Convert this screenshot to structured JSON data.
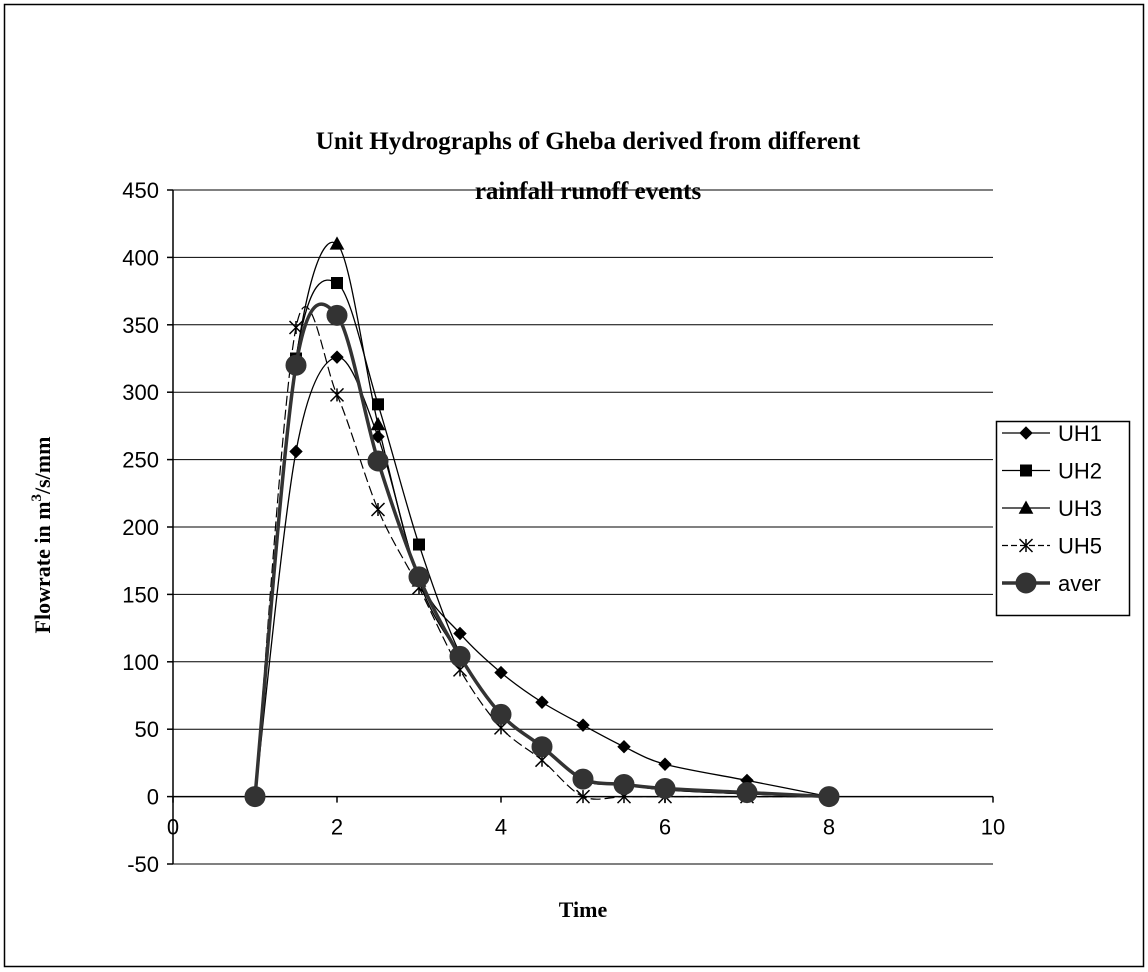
{
  "chart_data": {
    "type": "line",
    "title_lines": [
      "Unit Hydrographs of Gheba derived from different",
      "rainfall runoff events"
    ],
    "xlabel": "Time",
    "ylabel_main": "Flowrate in m",
    "ylabel_sup": "3",
    "ylabel_tail": "/s/mm",
    "xlim": [
      0,
      10
    ],
    "ylim": [
      -50,
      450
    ],
    "x_ticks": [
      0,
      2,
      4,
      6,
      8,
      10
    ],
    "y_ticks": [
      -50,
      0,
      50,
      100,
      150,
      200,
      250,
      300,
      350,
      400,
      450
    ],
    "grid": "horizontal",
    "legend_position": "right",
    "series": [
      {
        "name": "UH1",
        "marker": "diamond",
        "color": "#000000",
        "x": [
          1,
          1.5,
          2,
          2.5,
          3,
          3.5,
          4,
          4.5,
          5,
          5.5,
          6,
          7,
          8
        ],
        "y": [
          0,
          256,
          326,
          267,
          162,
          121,
          92,
          70,
          53,
          37,
          24,
          12,
          0
        ]
      },
      {
        "name": "UH2",
        "marker": "square",
        "color": "#000000",
        "x": [
          1,
          1.5,
          2,
          2.5,
          3,
          3.5,
          4,
          4.5,
          5,
          5.5,
          6,
          7,
          8
        ],
        "y": [
          0,
          325,
          381,
          291,
          187,
          106,
          60,
          37,
          12,
          9,
          5,
          2,
          0
        ]
      },
      {
        "name": "UH3",
        "marker": "triangle",
        "color": "#000000",
        "x": [
          1,
          1.5,
          2,
          2.5,
          3,
          3.5,
          4,
          4.5,
          5,
          5.5,
          6,
          7,
          8
        ],
        "y": [
          0,
          324,
          410,
          276,
          160,
          104,
          60,
          37,
          12,
          9,
          5,
          2,
          0
        ]
      },
      {
        "name": "UH5",
        "marker": "asterisk",
        "color": "#000000",
        "x": [
          1,
          1.5,
          2,
          2.5,
          3,
          3.5,
          4,
          4.5,
          5,
          5.5,
          6,
          7,
          8
        ],
        "y": [
          0,
          348,
          298,
          213,
          155,
          94,
          51,
          27,
          0,
          0,
          0,
          0,
          0
        ]
      },
      {
        "name": "aver",
        "marker": "circle",
        "color": "#000000",
        "x": [
          1,
          1.5,
          2,
          2.5,
          3,
          3.5,
          4,
          4.5,
          5,
          5.5,
          6,
          7,
          8
        ],
        "y": [
          0,
          320,
          357,
          249,
          163,
          104,
          61,
          37,
          13,
          9,
          6,
          3,
          0
        ]
      }
    ]
  }
}
